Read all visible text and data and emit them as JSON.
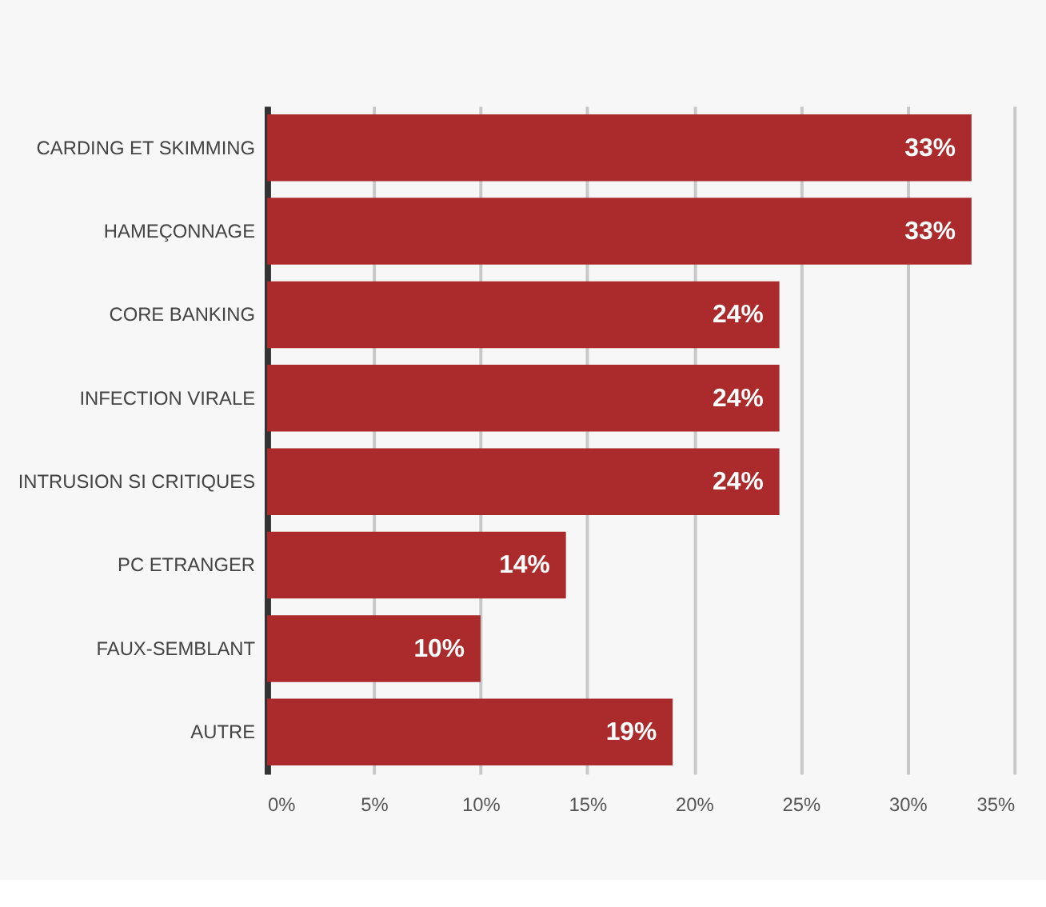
{
  "chart_data": {
    "type": "bar",
    "orientation": "horizontal",
    "categories": [
      "CARDING ET SKIMMING",
      "HAMEÇONNAGE",
      "CORE BANKING",
      "INFECTION VIRALE",
      "INTRUSION SI CRITIQUES",
      "PC ETRANGER",
      "FAUX-SEMBLANT",
      "AUTRE"
    ],
    "values": [
      33,
      33,
      24,
      24,
      24,
      14,
      10,
      19
    ],
    "value_labels": [
      "33%",
      "33%",
      "24%",
      "24%",
      "24%",
      "14%",
      "10%",
      "19%"
    ],
    "color": "#ab2a2b",
    "xlim": [
      0,
      35
    ],
    "xticks": [
      {
        "value": 0,
        "label": "0%"
      },
      {
        "value": 5,
        "label": "5%"
      },
      {
        "value": 10,
        "label": "10%"
      },
      {
        "value": 15,
        "label": "15%"
      },
      {
        "value": 20,
        "label": "20%"
      },
      {
        "value": 25,
        "label": "25%"
      },
      {
        "value": 30,
        "label": "30%"
      },
      {
        "value": 35,
        "label": "35%"
      }
    ],
    "grid": "x"
  }
}
